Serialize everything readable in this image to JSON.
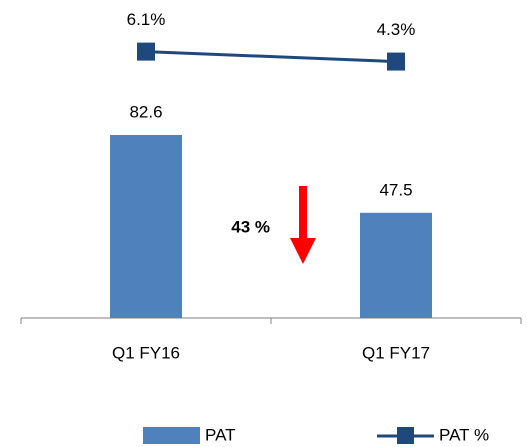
{
  "chart_data": {
    "type": "bar-line",
    "categories": [
      "Q1 FY16",
      "Q1 FY17"
    ],
    "series": [
      {
        "name": "PAT",
        "type": "bar",
        "color": "#4f81bd",
        "values": [
          82.6,
          47.5
        ],
        "value_labels": [
          "82.6",
          "47.5"
        ]
      },
      {
        "name": "PAT %",
        "type": "line",
        "axis": "y2",
        "color": "#1f497d",
        "values": [
          6.1,
          4.3
        ],
        "value_labels": [
          "6.1%",
          "4.3%"
        ]
      }
    ],
    "ylim": [
      0,
      130
    ],
    "y2lim": [
      -42,
      10
    ],
    "annotations": [
      "43 %"
    ],
    "legend": "bottom"
  }
}
